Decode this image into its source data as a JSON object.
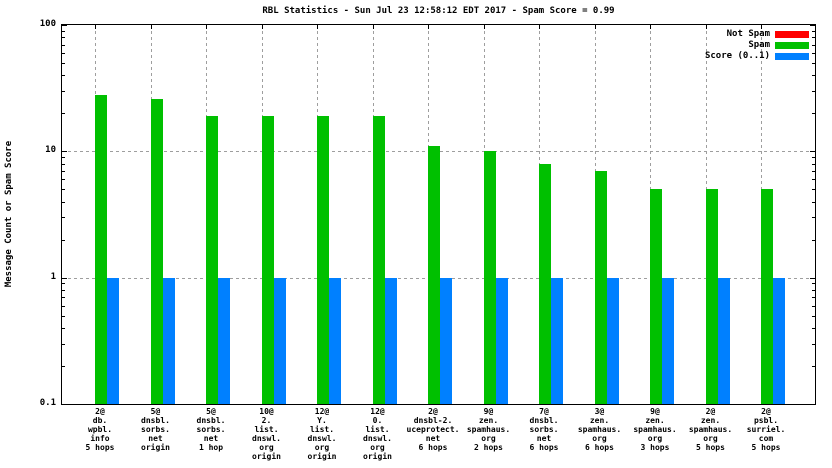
{
  "page": {
    "background": "#ffffff"
  },
  "chart_data": {
    "type": "bar",
    "title": "RBL Statistics - Sun Jul 23 12:58:12 EDT 2017 - Spam Score = 0.99",
    "ylabel": "Message Count or Spam Score",
    "xlabel": "",
    "yscale": "log",
    "ylim": [
      0.1,
      100
    ],
    "ytick_values": [
      100,
      10,
      1,
      0.1
    ],
    "ytick_labels": [
      "100",
      "10",
      "1",
      "0.1"
    ],
    "grid": true,
    "hgrid_values": [
      10,
      1
    ],
    "legend_position": "top-right",
    "grid_color": "#9e9e9e",
    "categories": [
      [
        "2@",
        "db.",
        "wpbl.",
        "info",
        "5 hops"
      ],
      [
        "5@",
        "dnsbl.",
        "sorbs.",
        "net",
        "origin"
      ],
      [
        "5@",
        "dnsbl.",
        "sorbs.",
        "net",
        "1 hop"
      ],
      [
        "10@",
        "2.",
        "list.",
        "dnswl.",
        "org",
        "origin"
      ],
      [
        "12@",
        "Y.",
        "list.",
        "dnswl.",
        "org",
        "origin"
      ],
      [
        "12@",
        "0.",
        "list.",
        "dnswl.",
        "org",
        "origin"
      ],
      [
        "2@",
        "dnsbl-2.",
        "uceprotect.",
        "net",
        "6 hops"
      ],
      [
        "9@",
        "zen.",
        "spamhaus.",
        "org",
        "2 hops"
      ],
      [
        "7@",
        "dnsbl.",
        "sorbs.",
        "net",
        "6 hops"
      ],
      [
        "3@",
        "zen.",
        "spamhaus.",
        "org",
        "6 hops"
      ],
      [
        "9@",
        "zen.",
        "spamhaus.",
        "org",
        "3 hops"
      ],
      [
        "2@",
        "zen.",
        "spamhaus.",
        "org",
        "5 hops"
      ],
      [
        "2@",
        "psbl.",
        "surriel.",
        "com",
        "5 hops"
      ]
    ],
    "series": [
      {
        "name": "Not Spam",
        "color": "#ff0000",
        "values": [
          0,
          0,
          0,
          0,
          0,
          0,
          0,
          0,
          0,
          0,
          0,
          0,
          0
        ]
      },
      {
        "name": "Spam",
        "color": "#00c000",
        "values": [
          28,
          26,
          19,
          19,
          19,
          19,
          11,
          10,
          8,
          7,
          5,
          5,
          5
        ]
      },
      {
        "name": "Score (0..1)",
        "color": "#0080ff",
        "values": [
          0.99,
          0.99,
          0.99,
          0.99,
          0.99,
          0.99,
          0.99,
          0.99,
          0.99,
          0.99,
          0.99,
          0.99,
          0.99
        ]
      }
    ]
  }
}
